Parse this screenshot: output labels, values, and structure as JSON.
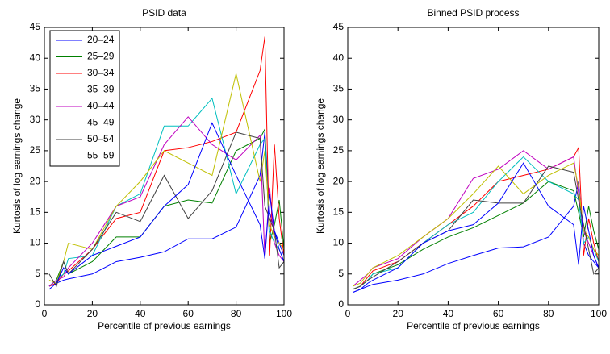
{
  "chart_data": [
    {
      "type": "line",
      "title": "PSID data",
      "xlabel": "Percentile of previous earnings",
      "ylabel": "Kurtosis of log earnings change",
      "x": [
        2,
        5,
        8,
        10,
        20,
        30,
        40,
        50,
        60,
        70,
        80,
        90,
        92,
        94,
        96,
        98,
        100
      ],
      "xlim": [
        0,
        100
      ],
      "ylim": [
        0,
        45
      ],
      "xticks": [
        0,
        20,
        40,
        60,
        80,
        100
      ],
      "yticks": [
        0,
        5,
        10,
        15,
        20,
        25,
        30,
        35,
        40,
        45
      ],
      "legend": "upper left",
      "series": [
        {
          "name": "20–24",
          "color": "#0000ff",
          "values": [
            3,
            3.5,
            4,
            4.2,
            5,
            7,
            7.7,
            8.6,
            10.7,
            10.7,
            12.6,
            21,
            28,
            15,
            12,
            10,
            8
          ]
        },
        {
          "name": "25–29",
          "color": "#008000",
          "values": [
            3,
            4,
            7,
            5,
            7,
            11,
            11,
            16,
            17,
            16.5,
            25,
            27,
            28.5,
            10,
            13,
            17,
            9
          ]
        },
        {
          "name": "30–34",
          "color": "#ff0000",
          "values": [
            3,
            3.5,
            5,
            5.5,
            9,
            14,
            15,
            25,
            25.5,
            26.5,
            28,
            38,
            43.5,
            8,
            26,
            14,
            8
          ]
        },
        {
          "name": "35–39",
          "color": "#00bfbf",
          "values": [
            3,
            4,
            5,
            7.5,
            8,
            16,
            18,
            29,
            29,
            33.5,
            18,
            26,
            27,
            12,
            10,
            9,
            7
          ]
        },
        {
          "name": "40–44",
          "color": "#bf00bf",
          "values": [
            3,
            4,
            4.5,
            6,
            10,
            16,
            17.5,
            26,
            30.5,
            26,
            23.5,
            27.5,
            7.5,
            19,
            10,
            8,
            7
          ]
        },
        {
          "name": "45–49",
          "color": "#bfbf00",
          "values": [
            4,
            3.5,
            7,
            10,
            9,
            16,
            20,
            25,
            23,
            21,
            37.5,
            20,
            25,
            13,
            11,
            10,
            9
          ]
        },
        {
          "name": "50–54",
          "color": "#404040",
          "values": [
            5,
            3,
            7,
            5,
            9,
            15,
            13.5,
            21,
            14,
            18.5,
            28,
            27,
            16,
            14,
            12,
            6,
            7
          ]
        },
        {
          "name": "55–59",
          "color": "#0000ff",
          "values": [
            2.5,
            3.5,
            6,
            5,
            8,
            9.5,
            11,
            16,
            19.5,
            29.5,
            21,
            13,
            7.5,
            18,
            12,
            9,
            7
          ]
        }
      ]
    },
    {
      "type": "line",
      "title": "Binned PSID process",
      "xlabel": "Percentile of previous earnings",
      "ylabel": "Kurtosis of log earnings change",
      "x": [
        2,
        5,
        8,
        10,
        20,
        30,
        40,
        50,
        60,
        70,
        80,
        90,
        92,
        94,
        96,
        98,
        100
      ],
      "xlim": [
        0,
        100
      ],
      "ylim": [
        0,
        45
      ],
      "xticks": [
        0,
        20,
        40,
        60,
        80,
        100
      ],
      "yticks": [
        0,
        5,
        10,
        15,
        20,
        25,
        30,
        35,
        40,
        45
      ],
      "series": [
        {
          "color": "#0000ff",
          "values": [
            2,
            2.5,
            3,
            3.3,
            4,
            5,
            6.7,
            8,
            9.2,
            9.4,
            11,
            16,
            20,
            10,
            8,
            7,
            6
          ]
        },
        {
          "color": "#008000",
          "values": [
            2.5,
            3,
            4,
            5,
            6.5,
            9,
            11,
            12.5,
            14.5,
            16.5,
            20,
            18.5,
            15,
            11,
            16,
            12,
            9
          ]
        },
        {
          "color": "#ff0000",
          "values": [
            2.5,
            3,
            4.5,
            5.5,
            7,
            10,
            13,
            16,
            20,
            21,
            22,
            24,
            25.5,
            8,
            14,
            10,
            7
          ]
        },
        {
          "color": "#00bfbf",
          "values": [
            2.5,
            3,
            4,
            5,
            6,
            10,
            13,
            15,
            20,
            24,
            20,
            18,
            17,
            10,
            11,
            9,
            7
          ]
        },
        {
          "color": "#bf00bf",
          "values": [
            3,
            4,
            5,
            6,
            7.5,
            11,
            14,
            20.5,
            22,
            25,
            22,
            24,
            18,
            12,
            10,
            8,
            6
          ]
        },
        {
          "color": "#bfbf00",
          "values": [
            3,
            3.5,
            5,
            6,
            8,
            11,
            14,
            18,
            22.5,
            18,
            21,
            23,
            19,
            12,
            11,
            9,
            8
          ]
        },
        {
          "color": "#404040",
          "values": [
            2.5,
            3,
            4,
            4.5,
            7,
            10,
            12,
            17,
            16.5,
            16.5,
            22.5,
            21.5,
            17,
            13,
            9,
            5,
            6
          ]
        },
        {
          "color": "#0000ff",
          "values": [
            2,
            2.5,
            3.5,
            4,
            6,
            10,
            12,
            13,
            16.5,
            23,
            16,
            13,
            6.5,
            16,
            12,
            8,
            6
          ]
        }
      ]
    }
  ]
}
